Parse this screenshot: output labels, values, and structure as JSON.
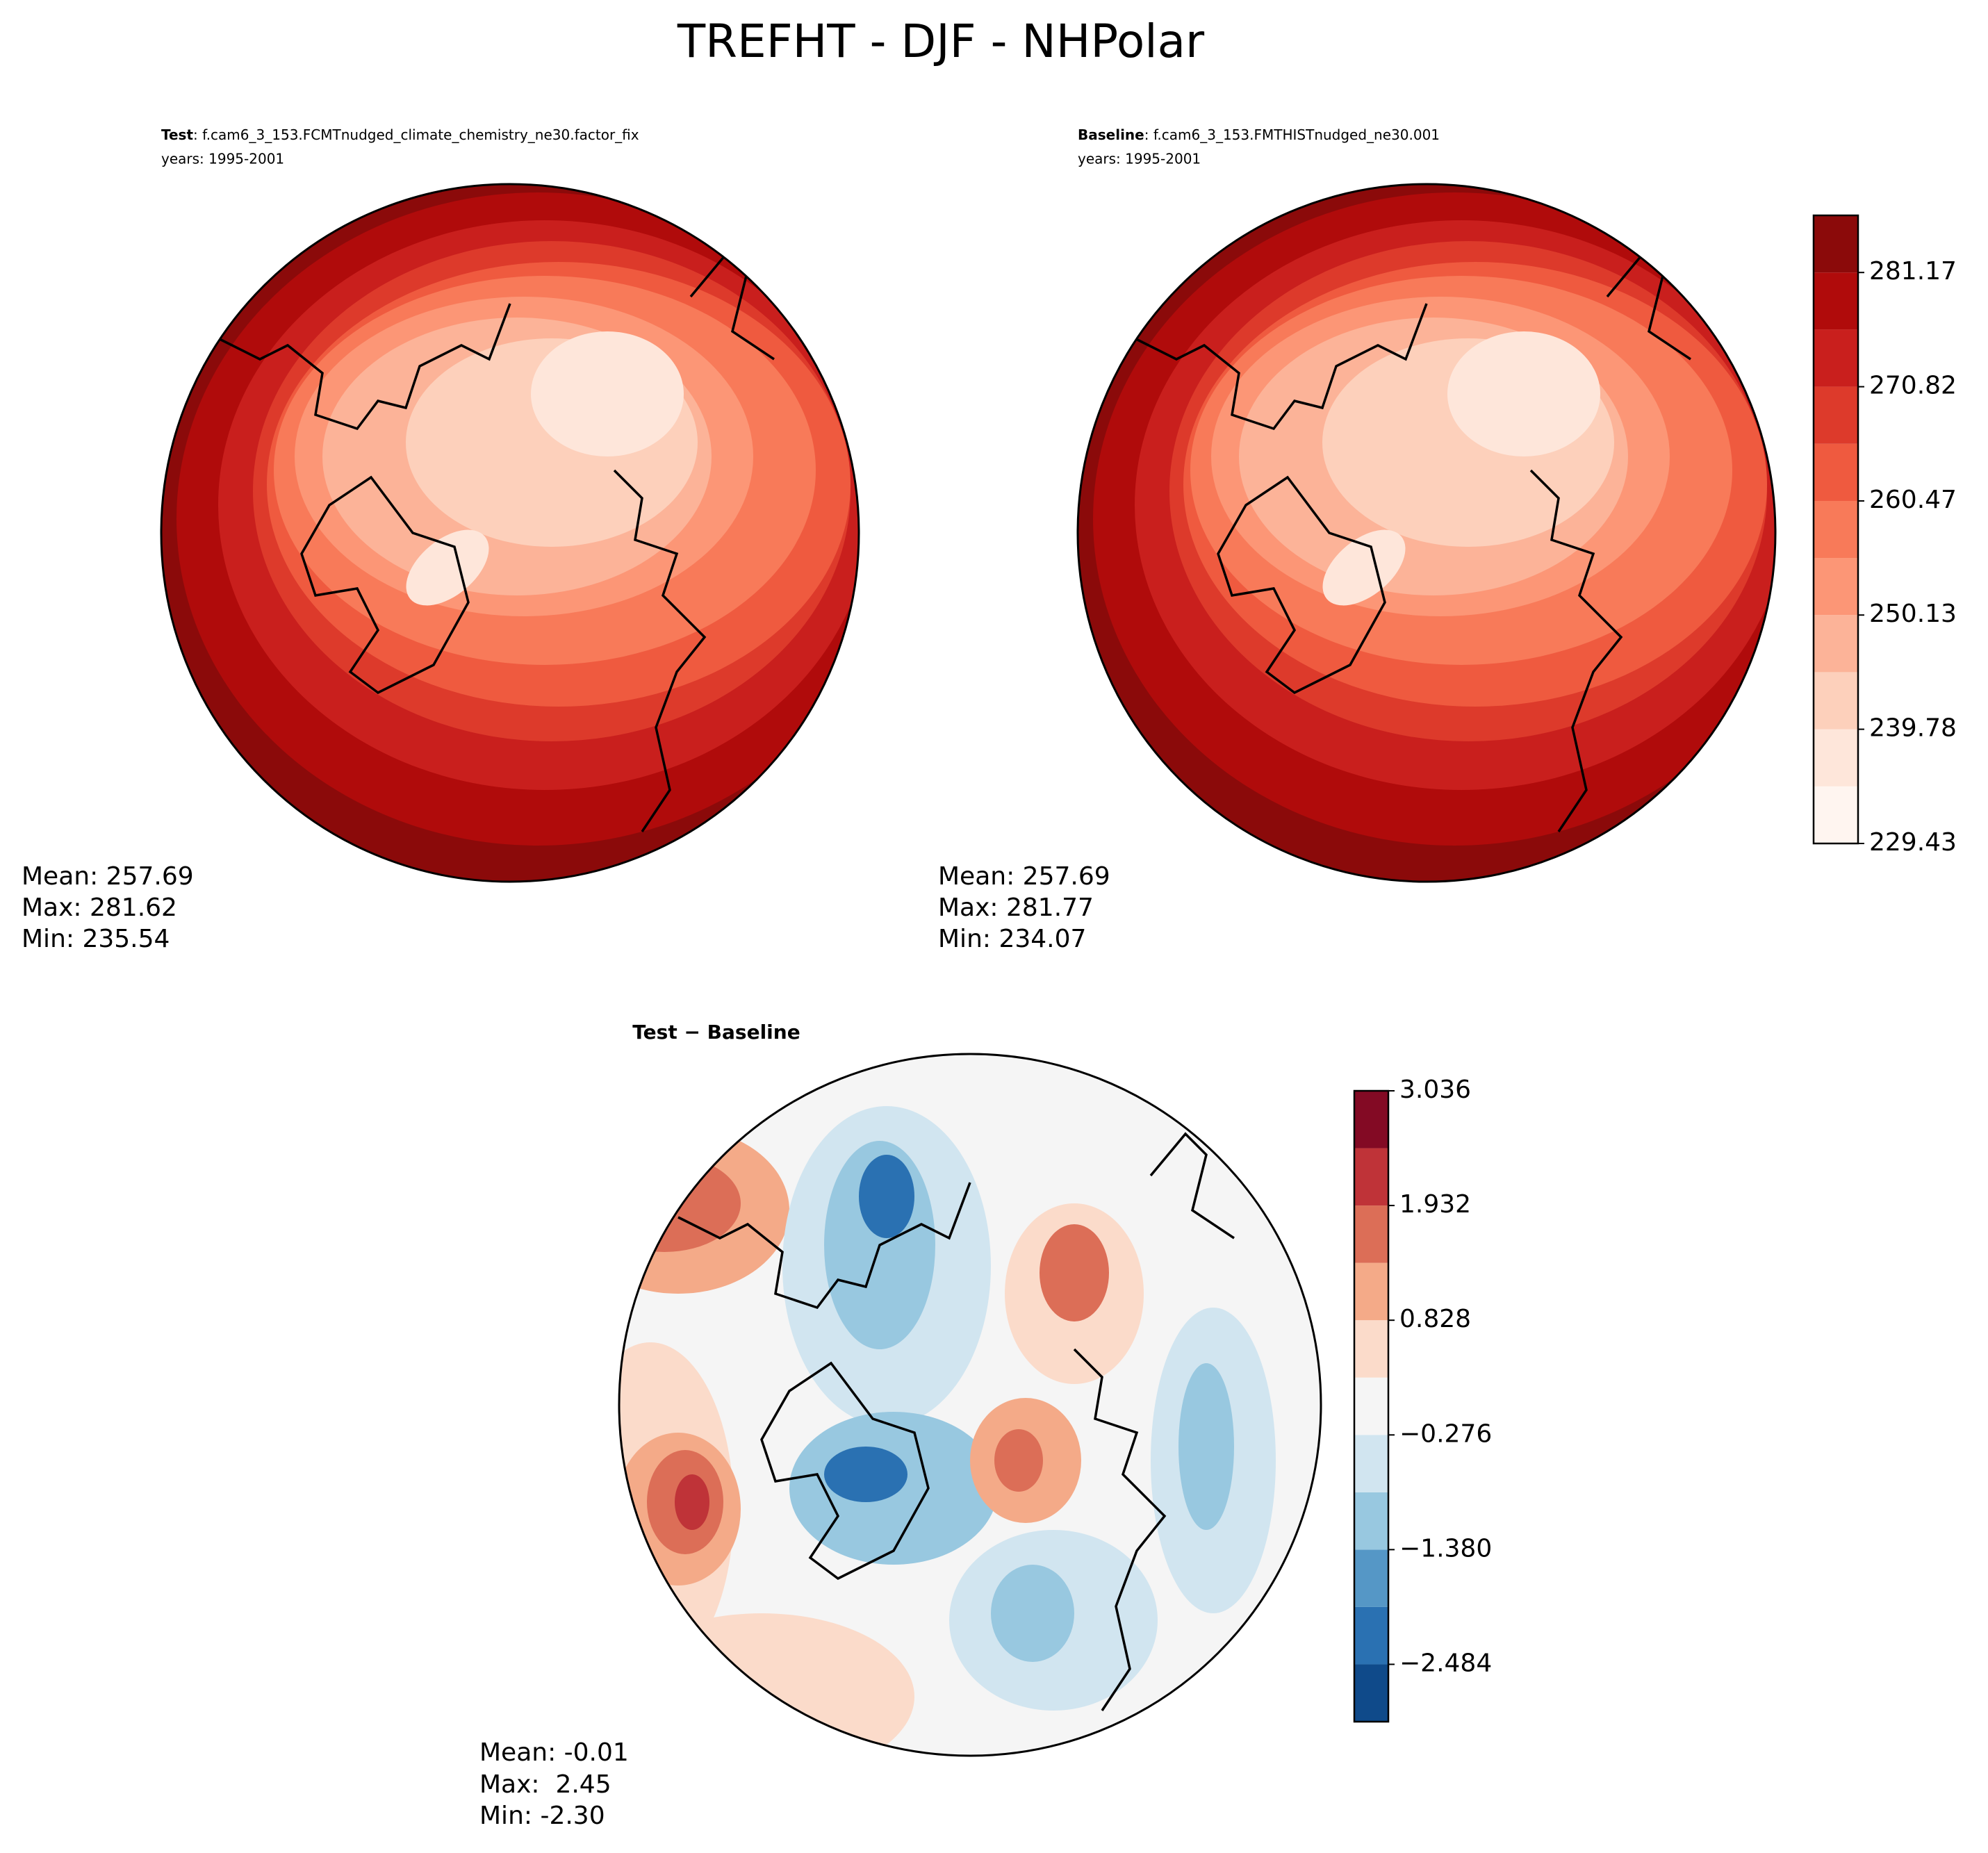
{
  "figure_title": "TREFHT - DJF - NHPolar",
  "chart_data": [
    {
      "type": "contour-map",
      "title_bold": "Test",
      "title": ": f.cam6_3_153.FCMTnudged_climate_chemistry_ne30.factor_fix",
      "subtitle": "years: 1995-2001",
      "stats": [
        "Mean: 257.69",
        "Max: 281.62",
        "Min: 235.54"
      ]
    },
    {
      "type": "contour-map",
      "title_bold": "Baseline",
      "title": ": f.cam6_3_153.FMTHISTnudged_ne30.001",
      "subtitle": "years: 1995-2001",
      "stats": [
        "Mean: 257.69",
        "Max: 281.77",
        "Min: 234.07"
      ]
    },
    {
      "type": "colorbar",
      "levels": [
        229.43,
        234.605,
        239.78,
        244.955,
        250.13,
        255.305,
        260.47,
        265.645,
        270.82,
        275.995,
        281.17,
        286.345
      ],
      "colors": [
        "#fff5f0",
        "#fee6da",
        "#fdd0bb",
        "#fcb398",
        "#fc9676",
        "#f87a59",
        "#ef5a3f",
        "#dd3a2b",
        "#c91f1d",
        "#b00b0b",
        "#8b0a0a"
      ],
      "ticks": [
        229.43,
        239.78,
        250.13,
        260.47,
        270.82,
        281.17
      ]
    },
    {
      "type": "contour-map",
      "title": "Test − Baseline",
      "stats": [
        "Mean: -0.01",
        "Max:  2.45",
        "Min: -2.30"
      ]
    },
    {
      "type": "colorbar",
      "levels": [
        -3.036,
        -2.484,
        -1.932,
        -1.38,
        -0.828,
        -0.276,
        0.276,
        0.828,
        1.38,
        1.932,
        2.484,
        3.036
      ],
      "colors": [
        "#0f4a8a",
        "#2a71b2",
        "#5597c6",
        "#98c8e0",
        "#d1e5f0",
        "#f5f5f5",
        "#fbdbca",
        "#f4aa88",
        "#dc6e57",
        "#bf3338",
        "#830a24"
      ],
      "ticks": [
        {
          "value": -2.484,
          "label": "−2.484"
        },
        {
          "value": -1.38,
          "label": "−1.380"
        },
        {
          "value": -0.276,
          "label": "−0.276"
        },
        0.828,
        1.932,
        3.036
      ]
    }
  ]
}
